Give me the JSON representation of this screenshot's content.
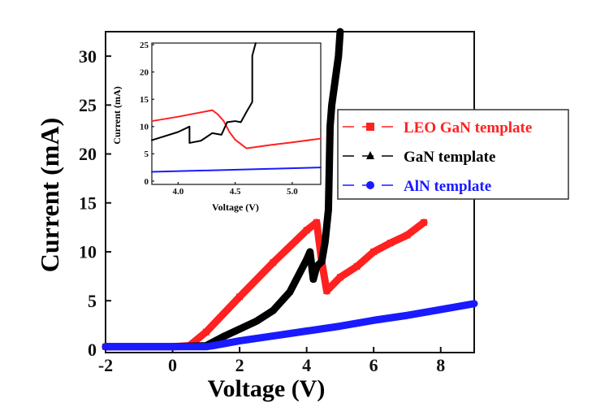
{
  "chart_data": [
    {
      "type": "line",
      "xlabel": "Voltage (V)",
      "ylabel": "Current (mA)",
      "xlim": [
        -2,
        9
      ],
      "ylim": [
        -0.3,
        32.5
      ],
      "xticks": [
        -2,
        0,
        2,
        4,
        6,
        8
      ],
      "yticks": [
        0,
        5,
        10,
        15,
        20,
        25,
        30
      ],
      "grid": false,
      "legend_position": "right",
      "series": [
        {
          "name": "LEO GaN template",
          "color": "#ff2020",
          "marker": "square",
          "x": [
            -2,
            -1,
            0,
            0.5,
            1,
            2,
            3,
            4,
            4.3,
            4.45,
            4.6,
            5,
            5.5,
            6,
            6.5,
            7,
            7.5
          ],
          "y": [
            0.3,
            0.3,
            0.3,
            0.4,
            1.8,
            5.4,
            8.9,
            12.2,
            13,
            9,
            6,
            7.4,
            8.5,
            10,
            10.9,
            11.7,
            13
          ]
        },
        {
          "name": "GaN template",
          "color": "#000000",
          "marker": "triangle",
          "x": [
            -2,
            -1,
            0,
            1,
            1.5,
            2,
            2.5,
            3,
            3.5,
            4,
            4.1,
            4.2,
            4.3,
            4.45,
            4.55,
            4.65,
            4.7,
            4.75,
            4.85,
            4.95,
            5.0
          ],
          "y": [
            0.3,
            0.3,
            0.3,
            0.4,
            1.3,
            2.1,
            2.9,
            4,
            5.9,
            9.2,
            10,
            7.2,
            8.5,
            9,
            11,
            14.3,
            22.8,
            25,
            27.5,
            30,
            32.5
          ]
        },
        {
          "name": "AlN template",
          "color": "#1a1aff",
          "marker": "circle",
          "x": [
            -2,
            -1,
            0,
            1,
            1.2,
            2,
            3,
            4,
            5,
            6,
            7,
            8,
            9
          ],
          "y": [
            0.3,
            0.3,
            0.3,
            0.3,
            0.4,
            0.9,
            1.4,
            1.9,
            2.4,
            3,
            3.5,
            4.1,
            4.7
          ]
        }
      ]
    },
    {
      "type": "line",
      "xlabel": "Voltage (V)",
      "ylabel": "Current (mA)",
      "xlim": [
        3.77,
        5.25
      ],
      "ylim": [
        -0.6,
        25.3
      ],
      "xticks": [
        "4.0",
        "4.5",
        "5.0"
      ],
      "yticks": [
        0,
        5,
        10,
        15,
        20,
        25
      ],
      "grid": false,
      "series": [
        {
          "color": "#ff2020",
          "x": [
            3.77,
            4.0,
            4.3,
            4.35,
            4.4,
            4.45,
            4.5,
            4.6,
            4.7,
            4.8,
            5.0,
            5.25
          ],
          "y": [
            11,
            11.8,
            13,
            12.2,
            11,
            9,
            7.6,
            6,
            6.3,
            6.6,
            7.1,
            7.8
          ]
        },
        {
          "color": "#000000",
          "x": [
            3.77,
            4.0,
            4.1,
            4.1,
            4.2,
            4.3,
            4.38,
            4.43,
            4.5,
            4.55,
            4.6,
            4.65,
            4.65,
            4.68
          ],
          "y": [
            7.5,
            9,
            10,
            7,
            7.4,
            8.8,
            8.5,
            10.8,
            11,
            10.8,
            12.7,
            14.5,
            23,
            25.3
          ]
        },
        {
          "color": "#1a1aff",
          "x": [
            3.77,
            5.25
          ],
          "y": [
            1.7,
            2.5
          ]
        }
      ]
    }
  ]
}
